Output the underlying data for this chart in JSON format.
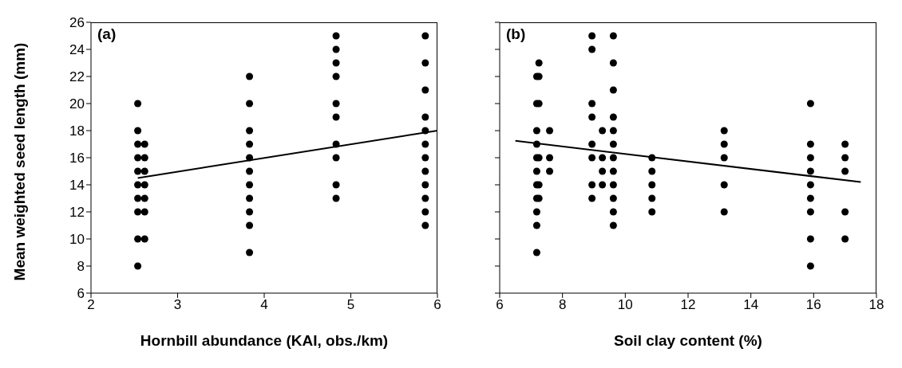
{
  "chart_data": [
    {
      "type": "scatter",
      "ylabel": "Mean weighted seed length (mm)",
      "xlabel": "Hornbill abundance (KAI, obs./km)",
      "annotations": [
        "(a)"
      ],
      "xlim": [
        2,
        6
      ],
      "xticks": [
        2,
        3,
        4,
        5,
        6
      ],
      "ylim": [
        6,
        26
      ],
      "yticks": [
        6,
        8,
        10,
        12,
        14,
        16,
        18,
        20,
        22,
        24,
        26
      ],
      "series": [
        {
          "marker": "circle",
          "color": "#000000",
          "x": [
            2.54,
            2.54,
            2.54,
            2.54,
            2.54,
            2.54,
            2.54,
            2.54,
            2.54,
            2.54,
            2.62,
            2.62,
            2.62,
            2.62,
            2.62,
            2.62,
            2.62,
            3.83,
            3.83,
            3.83,
            3.83,
            3.83,
            3.83,
            3.83,
            3.83,
            3.83,
            3.83,
            3.83,
            4.83,
            4.83,
            4.83,
            4.83,
            4.83,
            4.83,
            4.83,
            4.83,
            4.83,
            4.83,
            5.86,
            5.86,
            5.86,
            5.86,
            5.86,
            5.86,
            5.86,
            5.86,
            5.86,
            5.86,
            5.86,
            5.86
          ],
          "values": [
            20,
            18,
            17,
            16,
            15,
            14,
            13,
            12,
            10,
            8,
            17,
            16,
            15,
            14,
            13,
            12,
            10,
            22,
            20,
            18,
            17,
            16,
            15,
            14,
            13,
            12,
            11,
            9,
            25,
            24,
            23,
            22,
            20,
            19,
            17,
            16,
            14,
            13,
            25,
            23,
            21,
            19,
            18,
            17,
            16,
            15,
            14,
            13,
            12,
            11
          ]
        },
        {
          "type": "line",
          "color": "#000000",
          "line_style": "solid",
          "x": [
            2.54,
            6
          ],
          "values": [
            14.5,
            18
          ]
        }
      ]
    },
    {
      "type": "scatter",
      "xlabel": "Soil clay content (%)",
      "annotations": [
        "(b)"
      ],
      "xlim": [
        6,
        18
      ],
      "xticks": [
        6,
        8,
        10,
        12,
        14,
        16,
        18
      ],
      "ylim": [
        6,
        26
      ],
      "yticks": [
        6,
        8,
        10,
        12,
        14,
        16,
        18,
        20,
        22,
        24,
        26
      ],
      "tick_labels": "x",
      "series": [
        {
          "marker": "circle",
          "color": "#000000",
          "x": [
            7.18,
            7.18,
            7.18,
            7.18,
            7.18,
            7.18,
            7.18,
            7.18,
            7.18,
            7.18,
            7.18,
            7.25,
            7.25,
            7.25,
            7.25,
            7.25,
            7.25,
            7.59,
            7.59,
            7.59,
            8.94,
            8.94,
            8.94,
            8.94,
            8.94,
            8.94,
            8.94,
            8.94,
            9.27,
            9.27,
            9.27,
            9.27,
            9.62,
            9.62,
            9.62,
            9.62,
            9.62,
            9.62,
            9.62,
            9.62,
            9.62,
            9.62,
            9.62,
            9.62,
            10.85,
            10.85,
            10.85,
            10.85,
            10.85,
            13.15,
            13.15,
            13.15,
            13.15,
            13.15,
            15.9,
            15.9,
            15.9,
            15.9,
            15.9,
            15.9,
            15.9,
            15.9,
            15.9,
            17,
            17,
            17,
            17,
            17
          ],
          "values": [
            22,
            20,
            18,
            17,
            16,
            15,
            14,
            13,
            12,
            11,
            9,
            23,
            22,
            20,
            16,
            14,
            13,
            18,
            16,
            15,
            25,
            24,
            20,
            19,
            17,
            16,
            14,
            13,
            18,
            16,
            15,
            14,
            25,
            23,
            21,
            19,
            18,
            17,
            16,
            15,
            14,
            13,
            12,
            11,
            16,
            15,
            14,
            13,
            12,
            18,
            17,
            16,
            14,
            12,
            20,
            17,
            16,
            15,
            14,
            13,
            12,
            10,
            8,
            17,
            16,
            15,
            12,
            10
          ]
        },
        {
          "type": "line",
          "color": "#000000",
          "line_style": "solid",
          "x": [
            6.5,
            17.5
          ],
          "values": [
            17.25,
            14.2
          ]
        }
      ]
    }
  ]
}
